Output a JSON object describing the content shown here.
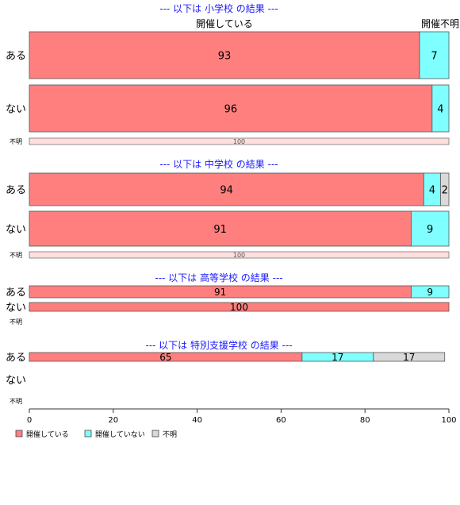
{
  "chart_data": {
    "type": "bar",
    "orientation": "horizontal",
    "stacked": true,
    "xlim": [
      0,
      100
    ],
    "xticks": [
      "0",
      "20",
      "40",
      "60",
      "80",
      "100"
    ],
    "header_labels": {
      "col1": "開催している",
      "col2": "開催不明"
    },
    "colors": {
      "開催している": "#ff7f7f",
      "開催していない": "#7fffff",
      "不明": "#d9d9d9"
    },
    "legend": {
      "placement": "bottom-left",
      "items": [
        {
          "label": "開催している",
          "color": "#ff7f7f"
        },
        {
          "label": "開催していない",
          "color": "#7fffff"
        },
        {
          "label": "不明",
          "color": "#d9d9d9"
        }
      ]
    },
    "panels": [
      {
        "title": "--- 以下は 小学校 の結果 ---",
        "rows": [
          {
            "label": "ある",
            "values": [
              93,
              7,
              0
            ]
          },
          {
            "label": "ない",
            "values": [
              96,
              4,
              0
            ]
          },
          {
            "label": "不明",
            "values": [
              0,
              0,
              0
            ],
            "unknown_total": 100
          }
        ]
      },
      {
        "title": "--- 以下は 中学校 の結果 ---",
        "rows": [
          {
            "label": "ある",
            "values": [
              94,
              4,
              2
            ]
          },
          {
            "label": "ない",
            "values": [
              91,
              9,
              0
            ]
          },
          {
            "label": "不明",
            "values": [
              0,
              0,
              0
            ],
            "unknown_total": 100
          }
        ]
      },
      {
        "title": "--- 以下は 高等学校 の結果 ---",
        "rows": [
          {
            "label": "ある",
            "values": [
              91,
              9,
              0
            ]
          },
          {
            "label": "ない",
            "values": [
              100,
              0,
              0
            ]
          },
          {
            "label": "不明",
            "values": [
              0,
              0,
              0
            ]
          }
        ]
      },
      {
        "title": "--- 以下は 特別支援学校 の結果 ---",
        "rows": [
          {
            "label": "ある",
            "values": [
              65,
              17,
              17
            ]
          },
          {
            "label": "ない",
            "values": [
              0,
              0,
              0
            ]
          },
          {
            "label": "不明",
            "values": [
              0,
              0,
              0
            ]
          }
        ]
      }
    ]
  }
}
